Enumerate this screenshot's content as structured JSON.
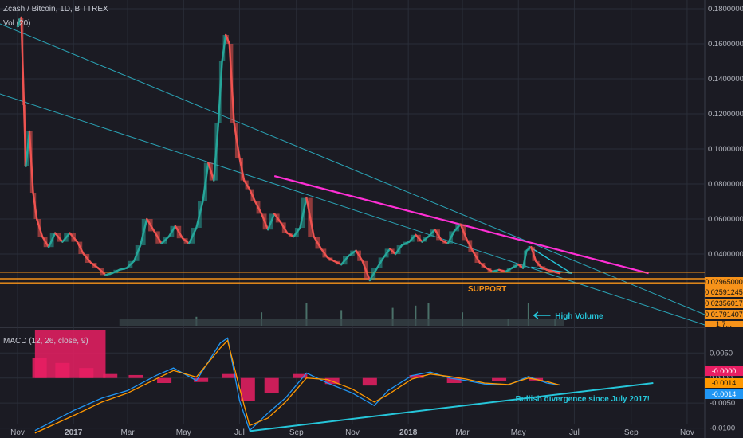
{
  "header": {
    "title": "Zcash / Bitcoin, 1D, BITTREX",
    "volume_label": "Vol (20)",
    "macd_label": "MACD (12, 26, close, 9)"
  },
  "colors": {
    "background": "#1b1b23",
    "grid": "#2a2e39",
    "up": "#26a69a",
    "down": "#ef5350",
    "trend_magenta": "#ff2fd5",
    "trend_cyan": "#26c6da",
    "support": "#f7931a",
    "macd_line": "#2196f3",
    "signal_line": "#ff9800",
    "histogram": "#e91e63"
  },
  "chart_data": [
    {
      "type": "line",
      "title": "Zcash / Bitcoin, 1D, BITTREX",
      "x_ticks": [
        "Nov",
        "2017",
        "Mar",
        "May",
        "Jul",
        "Sep",
        "Nov",
        "2018",
        "Mar",
        "May",
        "Jul",
        "Sep",
        "Nov"
      ],
      "y_ticks": [
        "0.18000000",
        "0.16000000",
        "0.14000000",
        "0.12000000",
        "0.10000000",
        "0.08000000",
        "0.06000000",
        "0.04000000"
      ],
      "ylim": [
        0.0,
        0.185
      ],
      "series": [
        {
          "x": [
            "2016-11-01",
            "2016-11-05",
            "2016-11-08",
            "2016-11-10",
            "2016-11-14",
            "2016-11-18",
            "2016-11-22",
            "2016-11-28",
            "2016-12-05",
            "2016-12-12",
            "2016-12-20",
            "2016-12-28",
            "2017-01-05",
            "2017-01-12",
            "2017-01-20",
            "2017-01-28",
            "2017-02-05",
            "2017-02-12",
            "2017-02-20",
            "2017-02-28",
            "2017-03-08",
            "2017-03-15",
            "2017-03-22",
            "2017-03-30",
            "2017-04-07",
            "2017-04-15",
            "2017-04-22",
            "2017-04-30",
            "2017-05-07",
            "2017-05-15",
            "2017-05-22",
            "2017-05-28",
            "2017-06-03",
            "2017-06-08",
            "2017-06-12",
            "2017-06-16",
            "2017-06-20",
            "2017-06-25",
            "2017-07-01",
            "2017-07-06",
            "2017-07-12",
            "2017-07-18",
            "2017-07-25",
            "2017-08-01",
            "2017-08-08",
            "2017-08-15",
            "2017-08-22",
            "2017-08-29",
            "2017-09-05",
            "2017-09-12",
            "2017-09-20",
            "2017-09-28",
            "2017-10-05",
            "2017-10-12",
            "2017-10-20",
            "2017-10-28",
            "2017-11-05",
            "2017-11-12",
            "2017-11-20",
            "2017-11-28",
            "2017-12-05",
            "2017-12-12",
            "2017-12-18",
            "2017-12-25",
            "2018-01-02",
            "2018-01-09",
            "2018-01-16",
            "2018-01-23",
            "2018-01-30",
            "2018-02-06",
            "2018-02-13",
            "2018-02-20",
            "2018-02-27",
            "2018-03-06",
            "2018-03-13",
            "2018-03-20",
            "2018-03-27",
            "2018-04-03",
            "2018-04-10",
            "2018-04-17",
            "2018-04-24",
            "2018-05-01",
            "2018-05-06",
            "2018-05-10",
            "2018-05-15",
            "2018-05-20",
            "2018-05-25",
            "2018-06-01",
            "2018-06-08",
            "2018-06-15"
          ],
          "values": [
            0.17,
            0.175,
            0.125,
            0.09,
            0.11,
            0.075,
            0.06,
            0.05,
            0.044,
            0.052,
            0.047,
            0.052,
            0.047,
            0.04,
            0.035,
            0.032,
            0.028,
            0.029,
            0.031,
            0.032,
            0.036,
            0.045,
            0.06,
            0.053,
            0.046,
            0.05,
            0.056,
            0.049,
            0.046,
            0.055,
            0.07,
            0.092,
            0.082,
            0.115,
            0.15,
            0.165,
            0.16,
            0.115,
            0.095,
            0.082,
            0.077,
            0.07,
            0.063,
            0.054,
            0.063,
            0.058,
            0.052,
            0.05,
            0.055,
            0.072,
            0.05,
            0.043,
            0.038,
            0.036,
            0.034,
            0.039,
            0.042,
            0.036,
            0.025,
            0.032,
            0.038,
            0.043,
            0.04,
            0.045,
            0.047,
            0.051,
            0.047,
            0.05,
            0.054,
            0.048,
            0.046,
            0.053,
            0.057,
            0.048,
            0.041,
            0.035,
            0.032,
            0.03,
            0.031,
            0.03,
            0.032,
            0.034,
            0.032,
            0.042,
            0.044,
            0.036,
            0.033,
            0.031,
            0.03,
            0.029
          ]
        }
      ]
    },
    {
      "type": "bar",
      "title": "Vol (20)",
      "x": [
        "2017-05-15",
        "2017-07-25",
        "2017-09-12",
        "2017-10-20",
        "2017-12-15",
        "2018-01-09",
        "2018-01-23",
        "2018-03-01",
        "2018-04-20",
        "2018-05-12",
        "2018-06-10"
      ],
      "values": [
        0.4,
        0.6,
        1.0,
        0.7,
        0.8,
        0.9,
        1.0,
        0.6,
        0.3,
        1.0,
        0.3
      ]
    },
    {
      "type": "line",
      "title": "MACD (12, 26, close, 9)",
      "y_ticks": [
        "0.0050",
        "0.0000",
        "-0.0050",
        "-0.0100"
      ],
      "ylim": [
        -0.0115,
        0.0095
      ],
      "series": [
        {
          "name": "MACD",
          "x": [
            "2016-11-20",
            "2017-01-01",
            "2017-02-01",
            "2017-03-01",
            "2017-04-01",
            "2017-04-20",
            "2017-05-15",
            "2017-06-10",
            "2017-06-18",
            "2017-07-01",
            "2017-07-12",
            "2017-08-01",
            "2017-08-20",
            "2017-09-12",
            "2017-10-05",
            "2017-11-01",
            "2017-11-25",
            "2017-12-10",
            "2018-01-05",
            "2018-01-25",
            "2018-02-15",
            "2018-03-05",
            "2018-03-25",
            "2018-04-20",
            "2018-05-12",
            "2018-06-01",
            "2018-06-15"
          ],
          "values": [
            -0.0105,
            -0.0065,
            -0.004,
            -0.0025,
            0.0005,
            0.002,
            -0.0005,
            0.007,
            0.008,
            -0.0045,
            -0.0105,
            -0.007,
            -0.004,
            0.001,
            -0.001,
            -0.003,
            -0.0055,
            -0.0025,
            0.0005,
            0.0012,
            0.0,
            -0.0005,
            -0.0012,
            -0.0014,
            0.0003,
            -0.001,
            -0.0014
          ]
        },
        {
          "name": "Signal",
          "x": [
            "2016-11-20",
            "2017-01-01",
            "2017-02-01",
            "2017-03-01",
            "2017-04-01",
            "2017-04-20",
            "2017-05-15",
            "2017-06-10",
            "2017-06-18",
            "2017-07-01",
            "2017-07-12",
            "2017-08-01",
            "2017-08-20",
            "2017-09-12",
            "2017-10-05",
            "2017-11-01",
            "2017-11-25",
            "2017-12-10",
            "2018-01-05",
            "2018-01-25",
            "2018-02-15",
            "2018-03-05",
            "2018-03-25",
            "2018-04-20",
            "2018-05-12",
            "2018-06-01",
            "2018-06-15"
          ],
          "values": [
            -0.011,
            -0.0075,
            -0.0048,
            -0.003,
            -0.0002,
            0.0015,
            0.0002,
            0.006,
            0.0075,
            -0.002,
            -0.0095,
            -0.008,
            -0.0048,
            0.0,
            -0.0003,
            -0.0022,
            -0.0048,
            -0.0033,
            -0.0002,
            0.0008,
            0.0003,
            -0.0002,
            -0.001,
            -0.0013,
            0.0,
            -0.0007,
            -0.0014
          ]
        }
      ],
      "histogram": {
        "x": [
          "2016-11-25",
          "2016-12-20",
          "2017-01-15",
          "2017-02-10",
          "2017-03-10",
          "2017-04-10",
          "2017-05-20",
          "2017-06-20",
          "2017-07-10",
          "2017-08-05",
          "2017-09-05",
          "2017-10-10",
          "2017-11-20",
          "2018-01-10",
          "2018-02-20",
          "2018-04-10",
          "2018-05-20"
        ],
        "values": [
          0.004,
          0.003,
          0.002,
          0.0008,
          0.0006,
          -0.001,
          -0.0008,
          0.0008,
          -0.0045,
          -0.003,
          0.0008,
          -0.0012,
          -0.0015,
          0.0006,
          -0.001,
          -0.0006,
          -0.0005
        ]
      }
    }
  ],
  "annotations": {
    "support_label": "SUPPORT",
    "high_volume_label": "High Volume",
    "divergence_label": "Bullish divergence since July 2017!"
  },
  "price_tags": [
    "0.02965000",
    "0.02591245",
    "0.02356017",
    "0.01791407",
    "1.7..."
  ],
  "macd_tags": [
    "-0.0000",
    "-0.0014",
    "-0.0014"
  ]
}
